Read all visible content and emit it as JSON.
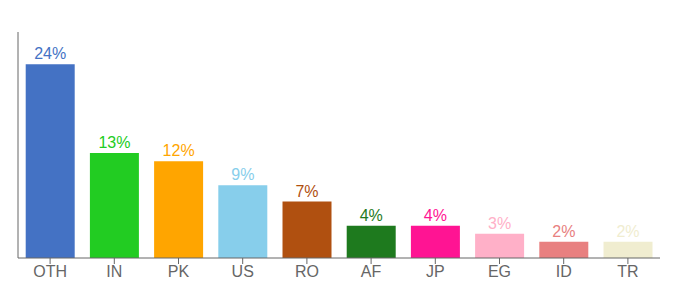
{
  "chart_data": {
    "type": "bar",
    "categories": [
      "OTH",
      "IN",
      "PK",
      "US",
      "RO",
      "AF",
      "JP",
      "EG",
      "ID",
      "TR"
    ],
    "values": [
      24,
      13,
      12,
      9,
      7,
      4,
      4,
      3,
      2,
      2
    ],
    "value_labels": [
      "24%",
      "13%",
      "12%",
      "9%",
      "7%",
      "4%",
      "4%",
      "3%",
      "2%",
      "2%"
    ],
    "colors": [
      "#4472C4",
      "#22CC22",
      "#FFA500",
      "#87CEEB",
      "#B05010",
      "#1E7A1E",
      "#FF1493",
      "#FFB0C8",
      "#E88080",
      "#F0EDD0"
    ],
    "ylim": [
      0,
      28
    ],
    "tick_labels": "x",
    "data_labels": true,
    "grid": false
  }
}
